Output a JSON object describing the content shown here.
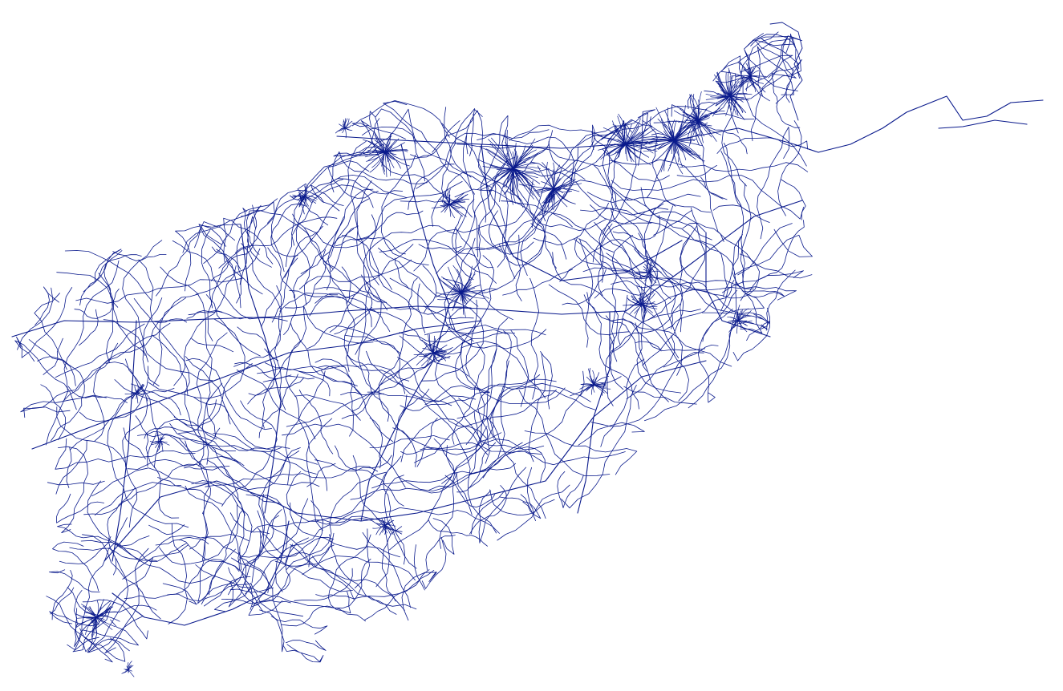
{
  "map": {
    "kind": "road-network",
    "background_color": "#ffffff",
    "road_color": "#0a1a8c"
  }
}
